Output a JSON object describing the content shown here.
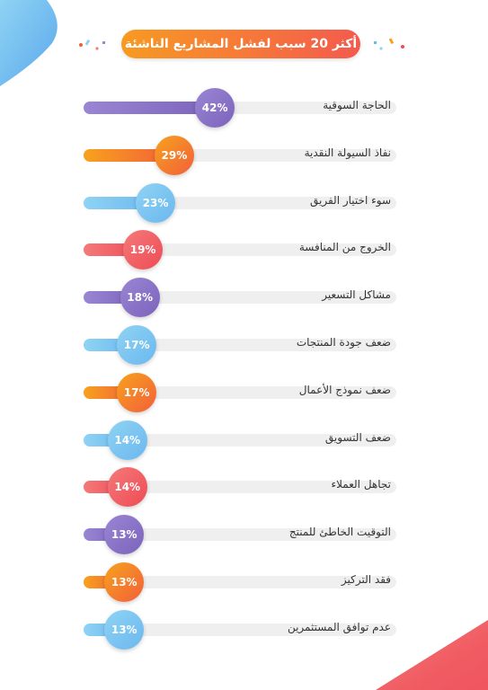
{
  "title": "أكثر 20 سبب لفشل المشاريع الناشئة",
  "palette": {
    "purple": [
      "#9a86d4",
      "#7b63bb"
    ],
    "orange": [
      "#f7a21d",
      "#f25f3a"
    ],
    "blue": [
      "#8fd3f4",
      "#6bb8ef"
    ],
    "red": [
      "#f47a7a",
      "#ee4b55"
    ]
  },
  "chart_data": {
    "type": "bar",
    "orientation": "horizontal",
    "title": "أكثر 20 سبب لفشل المشاريع الناشئة",
    "xlim": [
      0,
      100
    ],
    "grid": false,
    "categories": [
      "الحاجة السوقية",
      "نفاذ السيولة النقدية",
      "سوء اختيار الفريق",
      "الخروج من المنافسة",
      "مشاكل التسعير",
      "ضعف جودة المنتجات",
      "ضعف نموذج الأعمال",
      "ضعف التسويق",
      "تجاهل العملاء",
      "التوقيت الخاطئ للمنتج",
      "فقد التركيز",
      "عدم توافق المستثمرين"
    ],
    "values": [
      42,
      29,
      23,
      19,
      18,
      17,
      17,
      14,
      14,
      13,
      13,
      13
    ],
    "value_labels": [
      "42%",
      "29%",
      "23%",
      "19%",
      "18%",
      "17%",
      "17%",
      "14%",
      "14%",
      "13%",
      "13%",
      "13%"
    ],
    "colors": [
      "purple",
      "orange",
      "blue",
      "red",
      "purple",
      "blue",
      "orange",
      "blue",
      "red",
      "purple",
      "orange",
      "blue"
    ]
  }
}
